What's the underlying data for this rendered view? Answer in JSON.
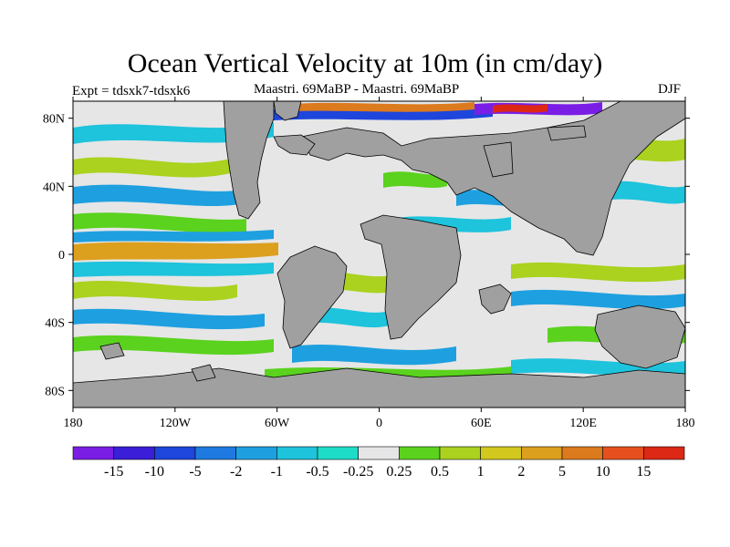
{
  "title": "Ocean Vertical Velocity at 10m (in cm/day)",
  "subtitle_left": "Expt = tdsxk7-tdsxk6",
  "subtitle_center": "Maastri.  69MaBP - Maastri.  69MaBP",
  "subtitle_right": "DJF",
  "lat_ticks": [
    {
      "label": "80N",
      "value": 80
    },
    {
      "label": "40N",
      "value": 40
    },
    {
      "label": "0",
      "value": 0
    },
    {
      "label": "40S",
      "value": -40
    },
    {
      "label": "80S",
      "value": -80
    }
  ],
  "lon_ticks": [
    {
      "label": "180",
      "value": -180
    },
    {
      "label": "120W",
      "value": -120
    },
    {
      "label": "60W",
      "value": -60
    },
    {
      "label": "0",
      "value": 0
    },
    {
      "label": "60E",
      "value": 60
    },
    {
      "label": "120E",
      "value": 120
    },
    {
      "label": "180",
      "value": 180
    }
  ],
  "colorbar": {
    "colors": [
      "#7a1ee6",
      "#3a1ed8",
      "#1e46dc",
      "#1e7ae0",
      "#1ea0e0",
      "#1ec3dc",
      "#1edcc8",
      "#e6e6e6",
      "#5ad21e",
      "#aad21e",
      "#d2c81e",
      "#dca01e",
      "#dc7a1e",
      "#e6501e",
      "#dc2814"
    ],
    "labels": [
      "-15",
      "-10",
      "-5",
      "-2",
      "-1",
      "-0.5",
      "-0.25",
      "0.25",
      "0.5",
      "1",
      "2",
      "5",
      "10",
      "15"
    ]
  },
  "colors": {
    "land": "#a0a0a0",
    "ocean_background": "#e6e6e6"
  }
}
